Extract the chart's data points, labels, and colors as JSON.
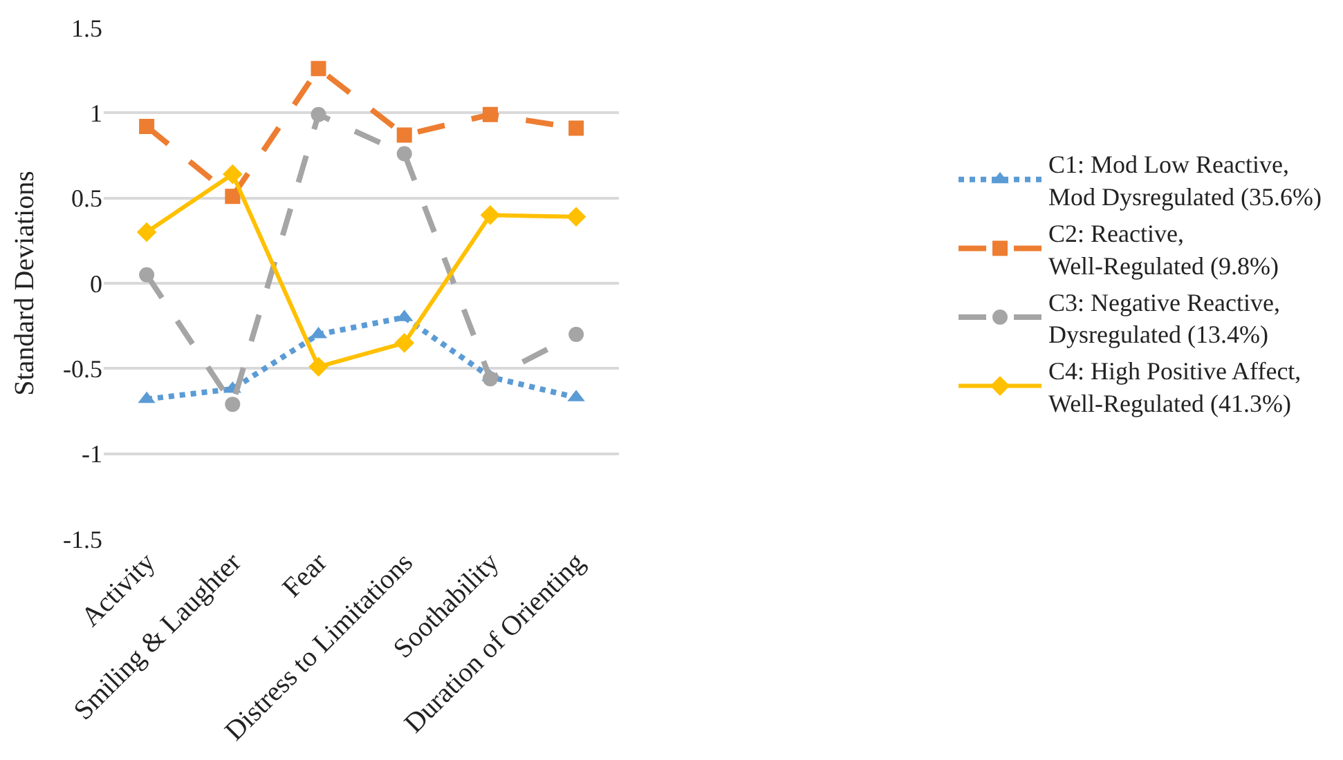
{
  "chart_data": {
    "type": "line",
    "ylabel": "Standard Deviations",
    "categories": [
      "Activity",
      "Smiling & Laughter",
      "Fear",
      "Distress to Limitations",
      "Soothability",
      "Duration of Orienting"
    ],
    "ylim": [
      -1.5,
      1.5
    ],
    "yticks": [
      -1.5,
      -1,
      -0.5,
      0,
      0.5,
      1,
      1.5
    ],
    "grid": "y",
    "legend": "right",
    "series": [
      {
        "name": "C1: Mod Low Reactive,\nMod Dysregulated (35.6%)",
        "color": "#5b9bd5",
        "marker": "triangle",
        "line_style": "dotted",
        "values": [
          -0.68,
          -0.62,
          -0.3,
          -0.2,
          -0.55,
          -0.67
        ]
      },
      {
        "name": "C2: Reactive,\nWell-Regulated (9.8%)",
        "color": "#ed7d31",
        "marker": "square",
        "line_style": "dashed",
        "values": [
          0.92,
          0.51,
          1.26,
          0.87,
          0.99,
          0.91
        ]
      },
      {
        "name": "C3: Negative Reactive,\nDysregulated (13.4%)",
        "color": "#a5a5a5",
        "marker": "circle",
        "line_style": "dashed",
        "values": [
          0.05,
          -0.71,
          0.99,
          0.76,
          -0.56,
          -0.3
        ]
      },
      {
        "name": "C4: High Positive Affect,\nWell-Regulated (41.3%)",
        "color": "#ffc000",
        "marker": "diamond",
        "line_style": "solid",
        "values": [
          0.3,
          0.64,
          -0.49,
          -0.35,
          0.4,
          0.39
        ]
      }
    ]
  }
}
